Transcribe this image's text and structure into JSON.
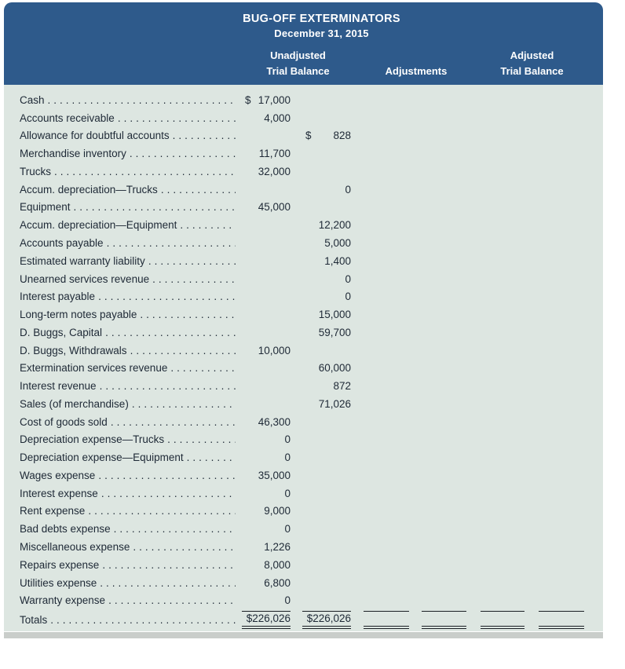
{
  "header": {
    "title": "BUG-OFF EXTERMINATORS",
    "date": "December 31, 2015",
    "col_unadjusted_line1": "Unadjusted",
    "col_unadjusted_line2": "Trial Balance",
    "col_adjustments": "Adjustments",
    "col_adjusted_line1": "Adjusted",
    "col_adjusted_line2": "Trial Balance"
  },
  "table": {
    "rows": [
      {
        "label": "Cash",
        "dr": "17,000",
        "dr_dollar": "$"
      },
      {
        "label": "Accounts receivable",
        "dr": "4,000"
      },
      {
        "label": "Allowance for doubtful accounts",
        "cr": "828",
        "cr_dollar": "$"
      },
      {
        "label": "Merchandise inventory",
        "dr": "11,700"
      },
      {
        "label": "Trucks",
        "dr": "32,000"
      },
      {
        "label": "Accum. depreciation—Trucks",
        "cr": "0"
      },
      {
        "label": "Equipment",
        "dr": "45,000"
      },
      {
        "label": "Accum. depreciation—Equipment",
        "cr": "12,200"
      },
      {
        "label": "Accounts payable",
        "cr": "5,000"
      },
      {
        "label": "Estimated warranty liability",
        "cr": "1,400"
      },
      {
        "label": "Unearned services revenue",
        "cr": "0"
      },
      {
        "label": "Interest payable",
        "cr": "0"
      },
      {
        "label": "Long-term notes payable",
        "cr": "15,000"
      },
      {
        "label": "D. Buggs, Capital",
        "cr": "59,700"
      },
      {
        "label": "D. Buggs, Withdrawals",
        "dr": "10,000"
      },
      {
        "label": "Extermination services revenue",
        "cr": "60,000"
      },
      {
        "label": "Interest revenue",
        "cr": "872"
      },
      {
        "label": "Sales (of merchandise)",
        "cr": "71,026"
      },
      {
        "label": "Cost of goods sold",
        "dr": "46,300"
      },
      {
        "label": "Depreciation expense—Trucks",
        "dr": "0"
      },
      {
        "label": "Depreciation expense—Equipment",
        "dr": "0"
      },
      {
        "label": "Wages expense",
        "dr": "35,000"
      },
      {
        "label": "Interest expense",
        "dr": "0"
      },
      {
        "label": "Rent expense",
        "dr": "9,000"
      },
      {
        "label": "Bad debts expense",
        "dr": "0"
      },
      {
        "label": "Miscellaneous expense",
        "dr": "1,226"
      },
      {
        "label": "Repairs expense",
        "dr": "8,000"
      },
      {
        "label": "Utilities expense",
        "dr": "6,800"
      },
      {
        "label": "Warranty expense",
        "dr": "0"
      }
    ],
    "totals": {
      "label": "Totals",
      "unadjusted_debit_total": "$226,026",
      "unadjusted_credit_total": "$226,026"
    }
  },
  "colors": {
    "header_background": "#2e5a8b",
    "body_background": "#dde6e1",
    "text": "#1e2936",
    "header_text": "#ffffff",
    "rule": "#1a1f24",
    "shadow": "#c9cdca"
  }
}
